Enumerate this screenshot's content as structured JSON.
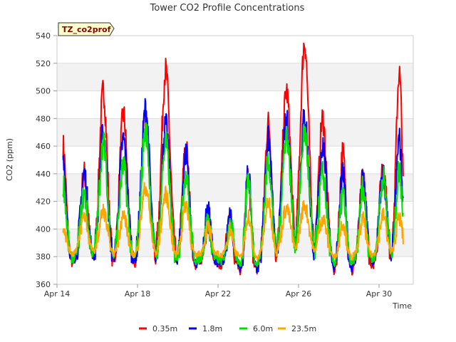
{
  "chart_data": {
    "type": "line",
    "title": "Tower CO2 Profile Concentrations",
    "badge": "TZ_co2prof",
    "xlabel": "Time",
    "ylabel": "CO2 (ppm)",
    "xlim": [
      14,
      31.7
    ],
    "ylim": [
      360,
      540
    ],
    "yticks": [
      360,
      380,
      400,
      420,
      440,
      460,
      480,
      500,
      520,
      540
    ],
    "xticks": [
      {
        "value": 14,
        "label": "Apr 14"
      },
      {
        "value": 18,
        "label": "Apr 18"
      },
      {
        "value": 22,
        "label": "Apr 22"
      },
      {
        "value": 26,
        "label": "Apr 26"
      },
      {
        "value": 30,
        "label": "Apr 30"
      }
    ],
    "x_unit": "day of April",
    "peaks": [
      {
        "day": 14.3,
        "width": 0.22
      },
      {
        "day": 15.35,
        "width": 0.25
      },
      {
        "day": 16.3,
        "width": 0.28
      },
      {
        "day": 17.3,
        "width": 0.28
      },
      {
        "day": 18.4,
        "width": 0.3
      },
      {
        "day": 19.4,
        "width": 0.3
      },
      {
        "day": 20.4,
        "width": 0.25
      },
      {
        "day": 21.5,
        "width": 0.2
      },
      {
        "day": 22.6,
        "width": 0.2
      },
      {
        "day": 23.5,
        "width": 0.2
      },
      {
        "day": 24.5,
        "width": 0.25
      },
      {
        "day": 25.4,
        "width": 0.3
      },
      {
        "day": 26.3,
        "width": 0.3
      },
      {
        "day": 27.2,
        "width": 0.28
      },
      {
        "day": 28.2,
        "width": 0.22
      },
      {
        "day": 29.2,
        "width": 0.22
      },
      {
        "day": 30.2,
        "width": 0.25
      },
      {
        "day": 31.0,
        "width": 0.22
      }
    ],
    "series": [
      {
        "name": "0.35m",
        "color": "#ff0000",
        "peak_values": [
          460,
          440,
          500,
          483,
          480,
          515,
          460,
          405,
          410,
          435,
          477,
          500,
          535,
          480,
          455,
          440,
          447,
          513
        ],
        "base_values": [
          374,
          375,
          372,
          370,
          369,
          372,
          372,
          376,
          374,
          369,
          372,
          374,
          374,
          372,
          368,
          373,
          373,
          374
        ]
      },
      {
        "name": "1.8m",
        "color": "#0000ff",
        "peak_values": [
          447,
          440,
          470,
          465,
          487,
          475,
          455,
          413,
          408,
          440,
          465,
          478,
          482,
          462,
          440,
          435,
          440,
          465
        ],
        "base_values": [
          376,
          377,
          374,
          374,
          372,
          371,
          373,
          376,
          375,
          371,
          374,
          376,
          376,
          373,
          371,
          375,
          375,
          376
        ]
      },
      {
        "name": "6.0m",
        "color": "#00e000",
        "peak_values": [
          433,
          425,
          462,
          445,
          471,
          462,
          440,
          405,
          403,
          438,
          450,
          468,
          470,
          440,
          425,
          430,
          438,
          443
        ],
        "base_values": [
          378,
          379,
          377,
          377,
          375,
          374,
          376,
          378,
          377,
          374,
          376,
          378,
          378,
          375,
          374,
          377,
          377,
          378
        ]
      },
      {
        "name": "23.5m",
        "color": "#ffa500",
        "peak_values": [
          403,
          410,
          413,
          410,
          430,
          425,
          418,
          402,
          400,
          410,
          420,
          415,
          417,
          408,
          405,
          407,
          410,
          408
        ],
        "base_values": [
          382,
          383,
          381,
          380,
          379,
          378,
          380,
          382,
          381,
          379,
          380,
          382,
          382,
          380,
          379,
          381,
          381,
          382
        ]
      }
    ],
    "legend_position": "bottom-center",
    "grid": true
  }
}
